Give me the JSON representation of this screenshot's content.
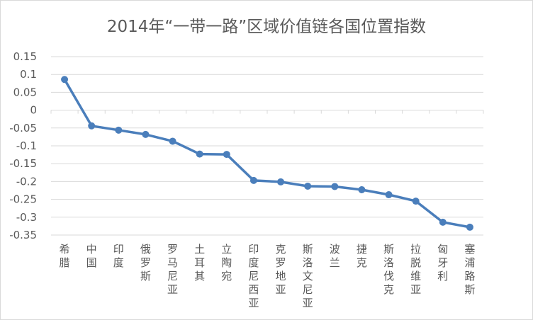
{
  "chart_data": {
    "type": "line",
    "title": "2014年“一带一路”区域价值链各国位置指数",
    "xlabel": "",
    "ylabel": "",
    "ylim": [
      -0.35,
      0.15
    ],
    "yticks": [
      0.15,
      0.1,
      0.05,
      0,
      -0.05,
      -0.1,
      -0.15,
      -0.2,
      -0.25,
      -0.3,
      -0.35
    ],
    "ytick_labels": [
      "0.15",
      "0.1",
      "0.05",
      "0",
      "-0.05",
      "-0.1",
      "-0.15",
      "-0.2",
      "-0.25",
      "-0.3",
      "-0.35"
    ],
    "grid": true,
    "legend": "none",
    "categories": [
      "希腊",
      "中国",
      "印度",
      "俄罗斯",
      "罗马尼亚",
      "土耳其",
      "立陶宛",
      "印度尼西亚",
      "克罗地亚",
      "斯洛文尼亚",
      "波兰",
      "捷克",
      "斯洛伐克",
      "拉脱维亚",
      "匈牙利",
      "塞浦路斯"
    ],
    "series": [
      {
        "values": [
          0.086,
          -0.044,
          -0.056,
          -0.068,
          -0.087,
          -0.123,
          -0.124,
          -0.197,
          -0.201,
          -0.213,
          -0.214,
          -0.223,
          -0.237,
          -0.255,
          -0.314,
          -0.328
        ]
      }
    ],
    "colors": {
      "line": "#4a7ebb",
      "grid": "#d9d9d9",
      "text": "#595959"
    }
  }
}
